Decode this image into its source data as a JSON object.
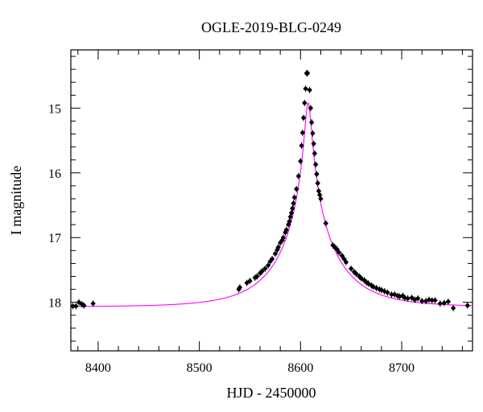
{
  "chart_data": {
    "type": "scatter",
    "title": "OGLE-2019-BLG-0249",
    "xlabel": "HJD - 2450000",
    "ylabel": "I magnitude",
    "xlim": [
      8373,
      8770
    ],
    "ylim": [
      18.75,
      14.1
    ],
    "y_inverted": true,
    "xticks": [
      8400,
      8500,
      8600,
      8700
    ],
    "yticks": [
      15,
      16,
      17,
      18
    ],
    "grid": false,
    "legend": "none",
    "colors": {
      "points": "#000000",
      "model": "#ff00ff"
    },
    "series": [
      {
        "type": "scatter",
        "x": [
          8375,
          8378,
          8381,
          8384,
          8386,
          8395,
          8539,
          8540,
          8547,
          8550,
          8555,
          8557,
          8560,
          8562,
          8565,
          8568,
          8570,
          8572,
          8575,
          8577,
          8578,
          8580,
          8582,
          8583,
          8585,
          8586,
          8588,
          8589,
          8590,
          8591,
          8592,
          8593,
          8594,
          8596,
          8598,
          8600,
          8601,
          8602,
          8603,
          8604,
          8605,
          8606,
          8607,
          8609,
          8610,
          8611,
          8612,
          8613,
          8614,
          8615,
          8616,
          8617,
          8618,
          8619,
          8620,
          8625,
          8632,
          8634,
          8636,
          8638,
          8641,
          8643,
          8645,
          8650,
          8653,
          8655,
          8658,
          8660,
          8663,
          8665,
          8667,
          8670,
          8672,
          8675,
          8678,
          8680,
          8683,
          8686,
          8690,
          8693,
          8696,
          8698,
          8701,
          8703,
          8706,
          8710,
          8713,
          8716,
          8720,
          8724,
          8727,
          8730,
          8733,
          8738,
          8742,
          8746,
          8751,
          8765
        ],
        "y": [
          18.06,
          18.06,
          18.0,
          18.03,
          18.05,
          18.02,
          17.8,
          17.77,
          17.7,
          17.67,
          17.62,
          17.6,
          17.55,
          17.52,
          17.48,
          17.43,
          17.37,
          17.33,
          17.25,
          17.19,
          17.15,
          17.08,
          17.04,
          17.0,
          16.92,
          16.88,
          16.8,
          16.75,
          16.68,
          16.62,
          16.55,
          16.47,
          16.38,
          16.25,
          16.05,
          15.82,
          15.58,
          15.38,
          15.15,
          14.92,
          14.7,
          14.46,
          14.46,
          14.72,
          15.0,
          15.22,
          15.39,
          15.55,
          15.7,
          15.87,
          16.02,
          16.16,
          16.28,
          16.34,
          16.4,
          16.78,
          17.12,
          17.15,
          17.18,
          17.23,
          17.28,
          17.33,
          17.38,
          17.48,
          17.53,
          17.56,
          17.6,
          17.63,
          17.66,
          17.69,
          17.71,
          17.74,
          17.76,
          17.78,
          17.8,
          17.81,
          17.83,
          17.85,
          17.88,
          17.88,
          17.9,
          17.91,
          17.9,
          17.93,
          17.94,
          17.93,
          17.96,
          17.94,
          17.98,
          17.98,
          17.96,
          17.97,
          17.97,
          18.02,
          18.01,
          17.99,
          18.09,
          18.05
        ]
      },
      {
        "type": "line",
        "model": "point-lens",
        "params": {
          "t0": 8607.5,
          "u0": 0.055,
          "tE": 55,
          "baseline": 18.07
        }
      }
    ]
  }
}
